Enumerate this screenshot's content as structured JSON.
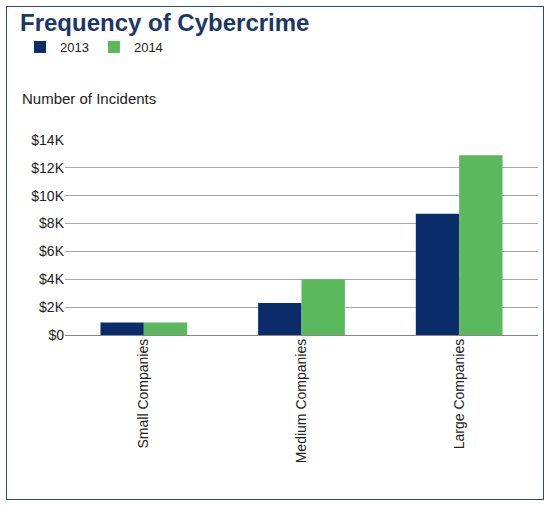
{
  "chart_data": {
    "type": "bar",
    "title": "Frequency of Cybercrime",
    "ylabel": "Number of Incidents",
    "categories": [
      "Small Companies",
      "Medium Companies",
      "Large Companies"
    ],
    "series": [
      {
        "name": "2013",
        "color": "#0b2c6b",
        "values": [
          900,
          2300,
          8700
        ]
      },
      {
        "name": "2014",
        "color": "#5cb85c",
        "values": [
          900,
          4000,
          12900
        ]
      }
    ],
    "ylim": [
      0,
      14000
    ],
    "yticks": [
      {
        "value": 0,
        "label": "$0"
      },
      {
        "value": 2000,
        "label": "$2K"
      },
      {
        "value": 4000,
        "label": "$4K"
      },
      {
        "value": 6000,
        "label": "$6K"
      },
      {
        "value": 8000,
        "label": "$8K"
      },
      {
        "value": 10000,
        "label": "$10K"
      },
      {
        "value": 12000,
        "label": "$12K"
      },
      {
        "value": 14000,
        "label": "$14K"
      }
    ],
    "grid": true,
    "legend": "top-left"
  }
}
